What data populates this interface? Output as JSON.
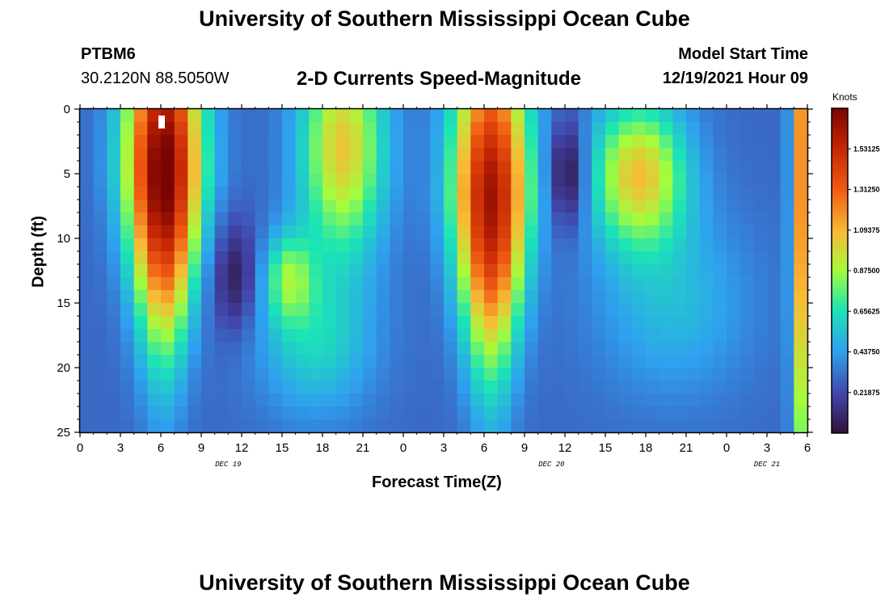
{
  "chart_data": {
    "type": "heatmap",
    "title": "University of Southern Mississippi Ocean Cube",
    "station": "PTBM6",
    "location": "30.2120N  88.5050W",
    "subtitle": "2-D Currents Speed-Magnitude",
    "model_start_label": "Model Start Time",
    "model_start_value": "12/19/2021 Hour 09",
    "xlabel": "Forecast Time(Z)",
    "ylabel": "Depth (ft)",
    "x_range_hours": [
      0,
      54
    ],
    "y_range_ft": [
      0,
      25
    ],
    "x_ticks": [
      "0",
      "3",
      "6",
      "9",
      "12",
      "15",
      "18",
      "21",
      "0",
      "3",
      "6",
      "9",
      "12",
      "15",
      "18",
      "21",
      "0",
      "3",
      "6"
    ],
    "y_ticks": [
      "0",
      "5",
      "10",
      "15",
      "20",
      "25"
    ],
    "date_labels": [
      {
        "label": "DEC 19",
        "hour": 11
      },
      {
        "label": "DEC 20",
        "hour": 35
      },
      {
        "label": "DEC 21",
        "hour": 51
      }
    ],
    "colorbar": {
      "title": "Knots",
      "min": 0,
      "max": 1.75,
      "ticks": [
        "1.53125",
        "1.31250",
        "1.09375",
        "0.87500",
        "0.65625",
        "0.43750",
        "0.21875"
      ],
      "tick_values": [
        1.53125,
        1.3125,
        1.09375,
        0.875,
        0.65625,
        0.4375,
        0.21875
      ]
    },
    "speed_field": {
      "blobs": [
        {
          "t": 6.2,
          "d": 5,
          "sigma_t": 1.6,
          "sigma_d": 9,
          "amp": 1.5,
          "narrow_with_depth": true
        },
        {
          "t": 11.5,
          "d": 13,
          "sigma_t": 1.2,
          "sigma_d": 3,
          "amp": -0.25
        },
        {
          "t": 15.5,
          "d": 13,
          "sigma_t": 1.3,
          "sigma_d": 2.5,
          "amp": 0.45
        },
        {
          "t": 19.5,
          "d": 3,
          "sigma_t": 2.2,
          "sigma_d": 6,
          "amp": 0.75
        },
        {
          "t": 17.5,
          "d": 18,
          "sigma_t": 3,
          "sigma_d": 4,
          "amp": 0.3
        },
        {
          "t": 30.5,
          "d": 7,
          "sigma_t": 1.6,
          "sigma_d": 9,
          "amp": 1.35,
          "narrow_with_depth": true
        },
        {
          "t": 36.2,
          "d": 5,
          "sigma_t": 1,
          "sigma_d": 3,
          "amp": -0.35
        },
        {
          "t": 41.5,
          "d": 5,
          "sigma_t": 2.5,
          "sigma_d": 4,
          "amp": 0.75
        },
        {
          "t": 44,
          "d": 15,
          "sigma_t": 4,
          "sigma_d": 5,
          "amp": 0.22
        },
        {
          "t": 53.8,
          "d": 4,
          "sigma_t": 0.6,
          "sigma_d": 20,
          "amp": 1.0
        }
      ],
      "background_knots": 0.3
    }
  }
}
